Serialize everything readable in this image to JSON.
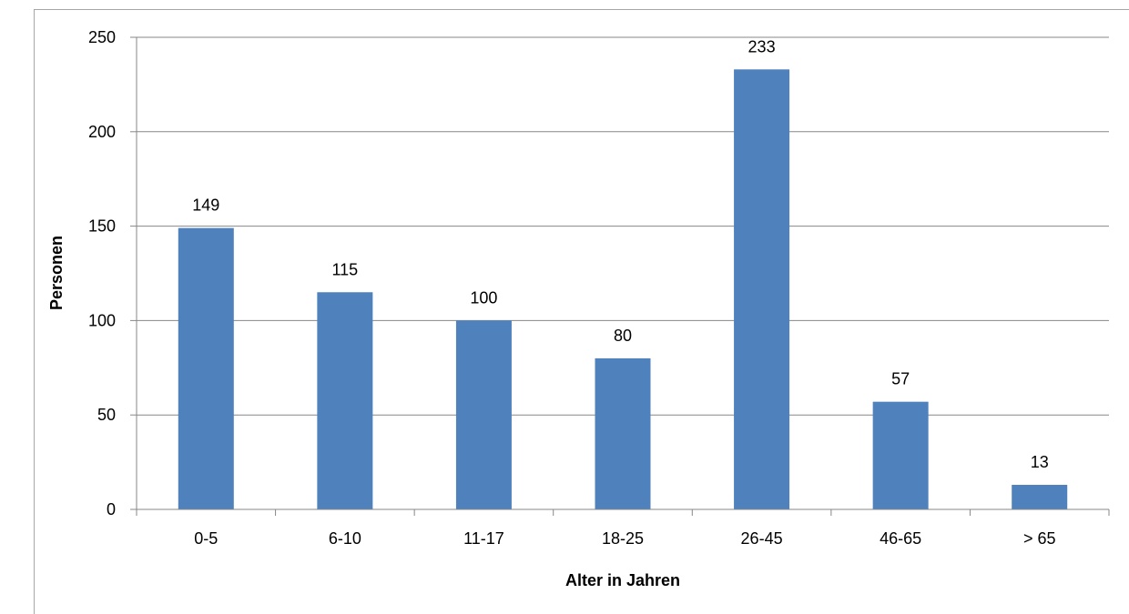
{
  "chart_data": {
    "type": "bar",
    "title": "",
    "xlabel": "Alter in Jahren",
    "ylabel": "Personen",
    "categories": [
      "0-5",
      "6-10",
      "11-17",
      "18-25",
      "26-45",
      "46-65",
      "> 65"
    ],
    "values": [
      149,
      115,
      100,
      80,
      233,
      57,
      13
    ],
    "data_labels": [
      "149",
      "115",
      "100",
      "80",
      "233",
      "57",
      "13"
    ],
    "y_ticks": [
      0,
      50,
      100,
      150,
      200,
      250
    ],
    "y_tick_labels": [
      "0",
      "50",
      "100",
      "150",
      "200",
      "250"
    ],
    "ylim": [
      0,
      250
    ],
    "grid": true,
    "legend": "none",
    "bar_color": "#4f81bd",
    "grid_color": "#878787"
  }
}
